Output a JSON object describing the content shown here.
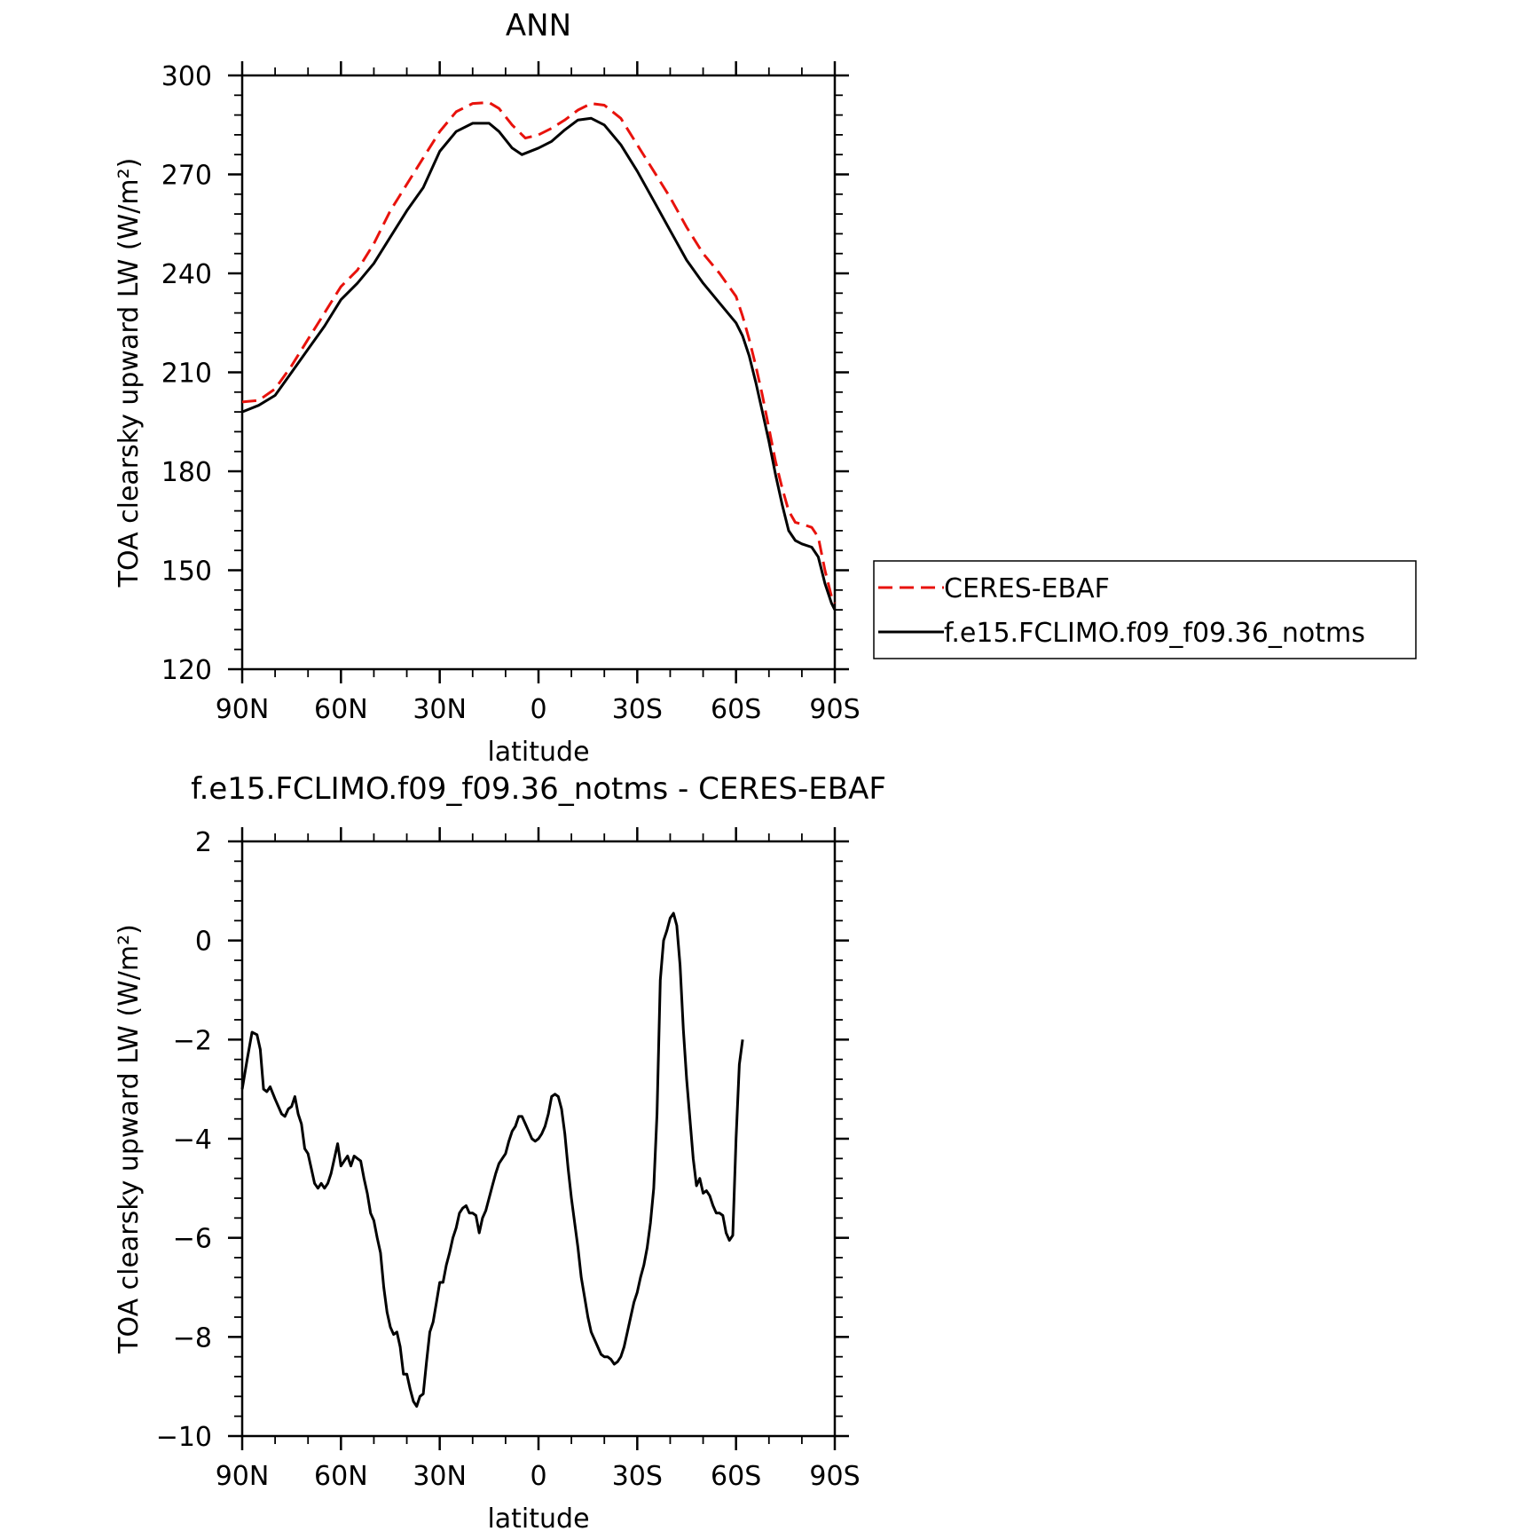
{
  "chart_data": [
    {
      "type": "line",
      "title": "ANN",
      "xlabel": "latitude",
      "ylabel": "TOA clearsky upward LW (W/m²)",
      "xlim": [
        90,
        -90
      ],
      "ylim": [
        120,
        300
      ],
      "xticks": [
        {
          "value": 90,
          "label": "90N"
        },
        {
          "value": 60,
          "label": "60N"
        },
        {
          "value": 30,
          "label": "30N"
        },
        {
          "value": 0,
          "label": "0"
        },
        {
          "value": -30,
          "label": "30S"
        },
        {
          "value": -60,
          "label": "60S"
        },
        {
          "value": -90,
          "label": "90S"
        }
      ],
      "yticks": [
        120,
        150,
        180,
        210,
        240,
        270,
        300
      ],
      "legend_position": "right",
      "series": [
        {
          "name": "CERES-EBAF",
          "color": "#e8120c",
          "style": "dashed",
          "points": [
            [
              90,
              201
            ],
            [
              85,
              201.5
            ],
            [
              80,
              205
            ],
            [
              75,
              212
            ],
            [
              70,
              220
            ],
            [
              65,
              228
            ],
            [
              60,
              236
            ],
            [
              55,
              241
            ],
            [
              50,
              249
            ],
            [
              45,
              259
            ],
            [
              40,
              267
            ],
            [
              35,
              275
            ],
            [
              30,
              283
            ],
            [
              25,
              289
            ],
            [
              20,
              291.5
            ],
            [
              15,
              291.8
            ],
            [
              12,
              290
            ],
            [
              8,
              285
            ],
            [
              4,
              281
            ],
            [
              0,
              282
            ],
            [
              -4,
              284
            ],
            [
              -8,
              286.5
            ],
            [
              -12,
              289.5
            ],
            [
              -16,
              291.5
            ],
            [
              -20,
              291
            ],
            [
              -25,
              287
            ],
            [
              -30,
              279
            ],
            [
              -35,
              271
            ],
            [
              -40,
              263
            ],
            [
              -45,
              254
            ],
            [
              -50,
              246
            ],
            [
              -55,
              240
            ],
            [
              -60,
              233
            ],
            [
              -62,
              227
            ],
            [
              -64,
              220
            ],
            [
              -66,
              212
            ],
            [
              -68,
              203
            ],
            [
              -70,
              193
            ],
            [
              -72,
              183
            ],
            [
              -74,
              175
            ],
            [
              -76,
              168
            ],
            [
              -78,
              164.5
            ],
            [
              -80,
              164
            ],
            [
              -83,
              163
            ],
            [
              -85,
              160
            ],
            [
              -87,
              150
            ],
            [
              -89,
              142
            ],
            [
              -90,
              140
            ]
          ]
        },
        {
          "name": "f.e15.FCLIMO.f09_f09.36_notms",
          "color": "#000000",
          "style": "solid",
          "points": [
            [
              90,
              198
            ],
            [
              85,
              200
            ],
            [
              80,
              203
            ],
            [
              75,
              210
            ],
            [
              70,
              217
            ],
            [
              65,
              224
            ],
            [
              60,
              232
            ],
            [
              55,
              237
            ],
            [
              50,
              243
            ],
            [
              45,
              251
            ],
            [
              40,
              259
            ],
            [
              35,
              266
            ],
            [
              30,
              277
            ],
            [
              25,
              283
            ],
            [
              20,
              285.5
            ],
            [
              15,
              285.5
            ],
            [
              12,
              283
            ],
            [
              8,
              278
            ],
            [
              5,
              276
            ],
            [
              0,
              278
            ],
            [
              -4,
              280
            ],
            [
              -8,
              283.5
            ],
            [
              -12,
              286.5
            ],
            [
              -16,
              287
            ],
            [
              -20,
              285
            ],
            [
              -25,
              279
            ],
            [
              -30,
              271
            ],
            [
              -35,
              262
            ],
            [
              -40,
              253
            ],
            [
              -45,
              244
            ],
            [
              -50,
              237
            ],
            [
              -55,
              231
            ],
            [
              -60,
              225
            ],
            [
              -62,
              221
            ],
            [
              -64,
              215
            ],
            [
              -66,
              207
            ],
            [
              -68,
              198
            ],
            [
              -70,
              189
            ],
            [
              -72,
              179
            ],
            [
              -74,
              170
            ],
            [
              -76,
              162
            ],
            [
              -78,
              159
            ],
            [
              -80,
              158
            ],
            [
              -83,
              157
            ],
            [
              -85,
              154
            ],
            [
              -87,
              146
            ],
            [
              -89,
              140
            ],
            [
              -90,
              138
            ]
          ]
        }
      ]
    },
    {
      "type": "line",
      "title": "f.e15.FCLIMO.f09_f09.36_notms - CERES-EBAF",
      "xlabel": "latitude",
      "ylabel": "TOA clearsky upward LW (W/m²)",
      "xlim": [
        90,
        -90
      ],
      "ylim": [
        -10,
        2
      ],
      "xticks": [
        {
          "value": 90,
          "label": "90N"
        },
        {
          "value": 60,
          "label": "60N"
        },
        {
          "value": 30,
          "label": "30N"
        },
        {
          "value": 0,
          "label": "0"
        },
        {
          "value": -30,
          "label": "30S"
        },
        {
          "value": -60,
          "label": "60S"
        },
        {
          "value": -90,
          "label": "90S"
        }
      ],
      "yticks": [
        -10,
        -8,
        -6,
        -4,
        -2,
        0,
        2
      ],
      "series": [
        {
          "color": "#000000",
          "style": "solid",
          "points": [
            [
              90,
              -3.0
            ],
            [
              88.5,
              -2.4
            ],
            [
              87,
              -1.85
            ],
            [
              85.5,
              -1.9
            ],
            [
              84.5,
              -2.2
            ],
            [
              83.5,
              -3.0
            ],
            [
              82.5,
              -3.05
            ],
            [
              81.5,
              -2.95
            ],
            [
              80,
              -3.2
            ],
            [
              78,
              -3.5
            ],
            [
              77,
              -3.55
            ],
            [
              76,
              -3.4
            ],
            [
              75,
              -3.35
            ],
            [
              74,
              -3.15
            ],
            [
              73,
              -3.5
            ],
            [
              72,
              -3.7
            ],
            [
              71,
              -4.2
            ],
            [
              70,
              -4.3
            ],
            [
              69,
              -4.6
            ],
            [
              68,
              -4.9
            ],
            [
              67,
              -5.0
            ],
            [
              66,
              -4.9
            ],
            [
              65,
              -5.0
            ],
            [
              64,
              -4.9
            ],
            [
              63,
              -4.7
            ],
            [
              62,
              -4.4
            ],
            [
              61,
              -4.1
            ],
            [
              60,
              -4.55
            ],
            [
              59,
              -4.45
            ],
            [
              58,
              -4.35
            ],
            [
              57,
              -4.55
            ],
            [
              56,
              -4.35
            ],
            [
              55,
              -4.4
            ],
            [
              54,
              -4.45
            ],
            [
              53,
              -4.8
            ],
            [
              52,
              -5.1
            ],
            [
              51,
              -5.5
            ],
            [
              50,
              -5.65
            ],
            [
              49,
              -6.0
            ],
            [
              48,
              -6.3
            ],
            [
              47,
              -7.0
            ],
            [
              46,
              -7.5
            ],
            [
              45,
              -7.8
            ],
            [
              44,
              -7.95
            ],
            [
              43,
              -7.9
            ],
            [
              42,
              -8.2
            ],
            [
              41,
              -8.75
            ],
            [
              40,
              -8.75
            ],
            [
              39,
              -9.05
            ],
            [
              38,
              -9.3
            ],
            [
              37,
              -9.4
            ],
            [
              36,
              -9.2
            ],
            [
              35,
              -9.15
            ],
            [
              34,
              -8.5
            ],
            [
              33,
              -7.9
            ],
            [
              32,
              -7.7
            ],
            [
              31,
              -7.3
            ],
            [
              30,
              -6.9
            ],
            [
              29,
              -6.9
            ],
            [
              28,
              -6.55
            ],
            [
              27,
              -6.3
            ],
            [
              26,
              -6.0
            ],
            [
              25,
              -5.8
            ],
            [
              24,
              -5.5
            ],
            [
              23,
              -5.4
            ],
            [
              22,
              -5.35
            ],
            [
              21,
              -5.5
            ],
            [
              20,
              -5.5
            ],
            [
              19,
              -5.55
            ],
            [
              18,
              -5.9
            ],
            [
              17,
              -5.6
            ],
            [
              16,
              -5.45
            ],
            [
              15,
              -5.2
            ],
            [
              14,
              -4.95
            ],
            [
              13,
              -4.7
            ],
            [
              12,
              -4.5
            ],
            [
              11,
              -4.4
            ],
            [
              10,
              -4.3
            ],
            [
              9,
              -4.05
            ],
            [
              8,
              -3.85
            ],
            [
              7,
              -3.75
            ],
            [
              6,
              -3.55
            ],
            [
              5,
              -3.55
            ],
            [
              4,
              -3.7
            ],
            [
              3,
              -3.85
            ],
            [
              2,
              -4.0
            ],
            [
              1,
              -4.05
            ],
            [
              0,
              -4.0
            ],
            [
              -1,
              -3.9
            ],
            [
              -2,
              -3.75
            ],
            [
              -3,
              -3.5
            ],
            [
              -4,
              -3.15
            ],
            [
              -5,
              -3.1
            ],
            [
              -6,
              -3.15
            ],
            [
              -7,
              -3.4
            ],
            [
              -8,
              -3.9
            ],
            [
              -9,
              -4.6
            ],
            [
              -10,
              -5.2
            ],
            [
              -11,
              -5.7
            ],
            [
              -12,
              -6.2
            ],
            [
              -13,
              -6.8
            ],
            [
              -14,
              -7.2
            ],
            [
              -15,
              -7.6
            ],
            [
              -16,
              -7.9
            ],
            [
              -17,
              -8.05
            ],
            [
              -18,
              -8.2
            ],
            [
              -19,
              -8.35
            ],
            [
              -20,
              -8.4
            ],
            [
              -21,
              -8.4
            ],
            [
              -22,
              -8.45
            ],
            [
              -23,
              -8.55
            ],
            [
              -24,
              -8.5
            ],
            [
              -25,
              -8.4
            ],
            [
              -26,
              -8.2
            ],
            [
              -27,
              -7.9
            ],
            [
              -28,
              -7.6
            ],
            [
              -29,
              -7.3
            ],
            [
              -30,
              -7.1
            ],
            [
              -31,
              -6.8
            ],
            [
              -32,
              -6.55
            ],
            [
              -33,
              -6.2
            ],
            [
              -34,
              -5.7
            ],
            [
              -35,
              -5.0
            ],
            [
              -36,
              -3.5
            ],
            [
              -37,
              -0.8
            ],
            [
              -38,
              0.0
            ],
            [
              -39,
              0.2
            ],
            [
              -40,
              0.45
            ],
            [
              -41,
              0.55
            ],
            [
              -42,
              0.3
            ],
            [
              -43,
              -0.5
            ],
            [
              -44,
              -1.8
            ],
            [
              -45,
              -2.8
            ],
            [
              -46,
              -3.6
            ],
            [
              -47,
              -4.4
            ],
            [
              -48,
              -4.95
            ],
            [
              -49,
              -4.8
            ],
            [
              -50,
              -5.1
            ],
            [
              -51,
              -5.05
            ],
            [
              -52,
              -5.15
            ],
            [
              -53,
              -5.35
            ],
            [
              -54,
              -5.5
            ],
            [
              -55,
              -5.5
            ],
            [
              -56,
              -5.55
            ],
            [
              -57,
              -5.9
            ],
            [
              -58,
              -6.05
            ],
            [
              -59,
              -5.95
            ],
            [
              -60,
              -4.0
            ],
            [
              -61,
              -2.5
            ],
            [
              -62,
              -2.0
            ]
          ]
        }
      ]
    }
  ]
}
